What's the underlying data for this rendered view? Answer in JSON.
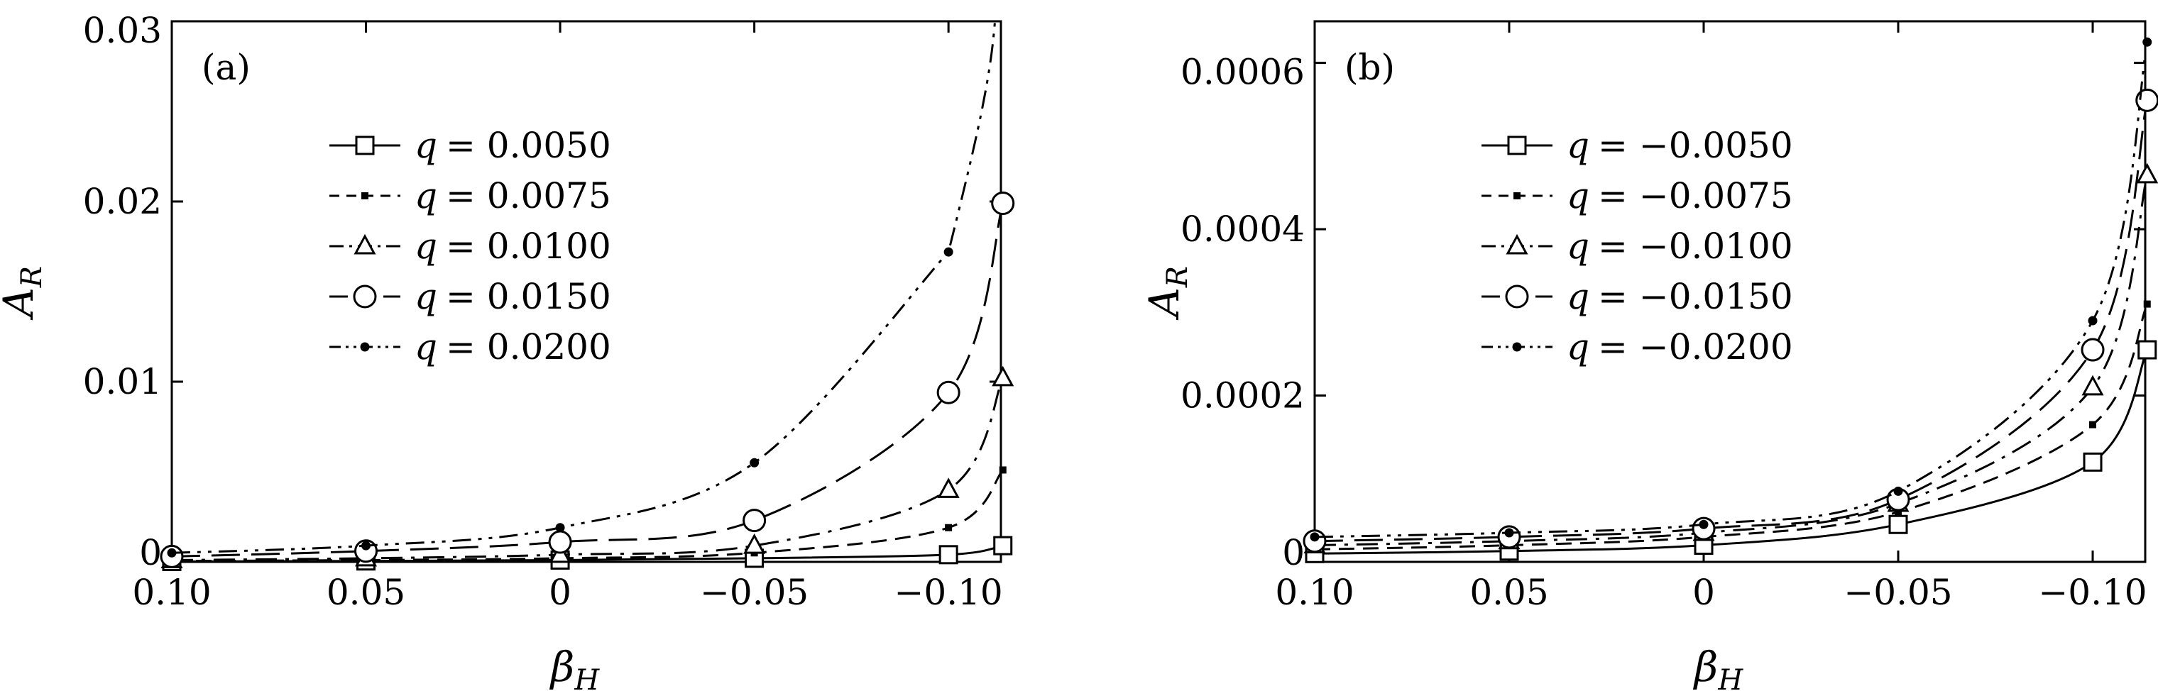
{
  "chart_data": [
    {
      "type": "line",
      "panel_label": "(a)",
      "xlabel": "β",
      "xlabel_sub": "H",
      "ylabel": "A",
      "ylabel_sub": "R",
      "x_reversed": true,
      "xlim": [
        0.1,
        -0.1135
      ],
      "ylim": [
        0,
        0.03
      ],
      "xticks": [
        0.1,
        0.05,
        0,
        -0.05,
        -0.1
      ],
      "xtick_labels": [
        "0.10",
        "0.05",
        "0",
        "−0.05",
        "−0.10"
      ],
      "yticks": [
        0,
        0.01,
        0.02,
        0.03
      ],
      "ytick_labels": [
        "0",
        "0.01",
        "0.02",
        "0.03"
      ],
      "legend_position": "upper-left",
      "series": [
        {
          "name": "q = 0.0050",
          "q_label": "q",
          "q_value": "= 0.0050",
          "style": "solid",
          "marker": "square",
          "x": [
            0.1,
            0.05,
            0,
            -0.05,
            -0.1,
            -0.114
          ],
          "y": [
            2e-05,
            5e-05,
            0.0001,
            0.0002,
            0.0004,
            0.0009
          ]
        },
        {
          "name": "q = 0.0075",
          "q_label": "q",
          "q_value": "= 0.0075",
          "style": "dashed",
          "marker": "smallsquare",
          "x": [
            0.1,
            0.05,
            0,
            -0.05,
            -0.1,
            -0.114
          ],
          "y": [
            5e-05,
            0.0001,
            0.0002,
            0.0005,
            0.0019,
            0.0051
          ]
        },
        {
          "name": "q = 0.0100",
          "q_label": "q",
          "q_value": "= 0.0100",
          "style": "dashdot",
          "marker": "triangle",
          "x": [
            0.1,
            0.05,
            0,
            -0.05,
            -0.1,
            -0.114
          ],
          "y": [
            0.0001,
            0.0002,
            0.0004,
            0.0009,
            0.004,
            0.0102
          ]
        },
        {
          "name": "q = 0.0150",
          "q_label": "q",
          "q_value": "= 0.0150",
          "style": "longdash",
          "marker": "circle",
          "x": [
            0.1,
            0.05,
            0,
            -0.05,
            -0.1,
            -0.114
          ],
          "y": [
            0.0003,
            0.0006,
            0.0011,
            0.0023,
            0.0094,
            0.0199
          ]
        },
        {
          "name": "q = 0.0200",
          "q_label": "q",
          "q_value": "= 0.0200",
          "style": "dashdotdot",
          "marker": "dot",
          "x": [
            0.1,
            0.05,
            0,
            -0.05,
            -0.1
          ],
          "y": [
            0.0005,
            0.0009,
            0.0019,
            0.0055,
            0.0172
          ]
        }
      ]
    },
    {
      "type": "line",
      "panel_label": "(b)",
      "xlabel": "β",
      "xlabel_sub": "H",
      "ylabel": "A",
      "ylabel_sub": "R",
      "x_reversed": true,
      "xlim": [
        0.1,
        -0.1135
      ],
      "ylim": [
        0,
        0.00065
      ],
      "xticks": [
        0.1,
        0.05,
        0,
        -0.05,
        -0.1
      ],
      "xtick_labels": [
        "0.10",
        "0.05",
        "0",
        "−0.05",
        "−0.10"
      ],
      "yticks": [
        0,
        0.0002,
        0.0004,
        0.0006
      ],
      "ytick_labels": [
        "0",
        "0.0002",
        "0.0004",
        "0.0006"
      ],
      "legend_position": "upper-left",
      "series": [
        {
          "name": "q = −0.0050",
          "q_label": "q",
          "q_value": "= −0.0050",
          "style": "solid",
          "marker": "square",
          "x": [
            0.1,
            0.05,
            0,
            -0.05,
            -0.1,
            -0.114
          ],
          "y": [
            1e-05,
            1.3e-05,
            2e-05,
            4.5e-05,
            0.00012,
            0.000255
          ]
        },
        {
          "name": "q = −0.0075",
          "q_label": "q",
          "q_value": "= −0.0075",
          "style": "dashed",
          "marker": "smallsquare",
          "x": [
            0.1,
            0.05,
            0,
            -0.05,
            -0.1,
            -0.114
          ],
          "y": [
            1.5e-05,
            2e-05,
            3e-05,
            6e-05,
            0.000165,
            0.00031
          ]
        },
        {
          "name": "q = −0.0100",
          "q_label": "q",
          "q_value": "= −0.0100",
          "style": "dashdot",
          "marker": "triangle",
          "x": [
            0.1,
            0.05,
            0,
            -0.05,
            -0.1,
            -0.114
          ],
          "y": [
            2e-05,
            2.5e-05,
            3.5e-05,
            7e-05,
            0.00021,
            0.000465
          ]
        },
        {
          "name": "q = −0.0150",
          "q_label": "q",
          "q_value": "= −0.0150",
          "style": "longdash",
          "marker": "circle",
          "x": [
            0.1,
            0.05,
            0,
            -0.05,
            -0.1,
            -0.114
          ],
          "y": [
            2.5e-05,
            3e-05,
            4e-05,
            7.5e-05,
            0.000255,
            0.000555
          ]
        },
        {
          "name": "q = −0.0200",
          "q_label": "q",
          "q_value": "= −0.0200",
          "style": "dashdotdot",
          "marker": "dot",
          "x": [
            0.1,
            0.05,
            0,
            -0.05,
            -0.1,
            -0.114
          ],
          "y": [
            3e-05,
            3.5e-05,
            4.5e-05,
            8.5e-05,
            0.00029,
            0.000625
          ]
        }
      ]
    }
  ]
}
